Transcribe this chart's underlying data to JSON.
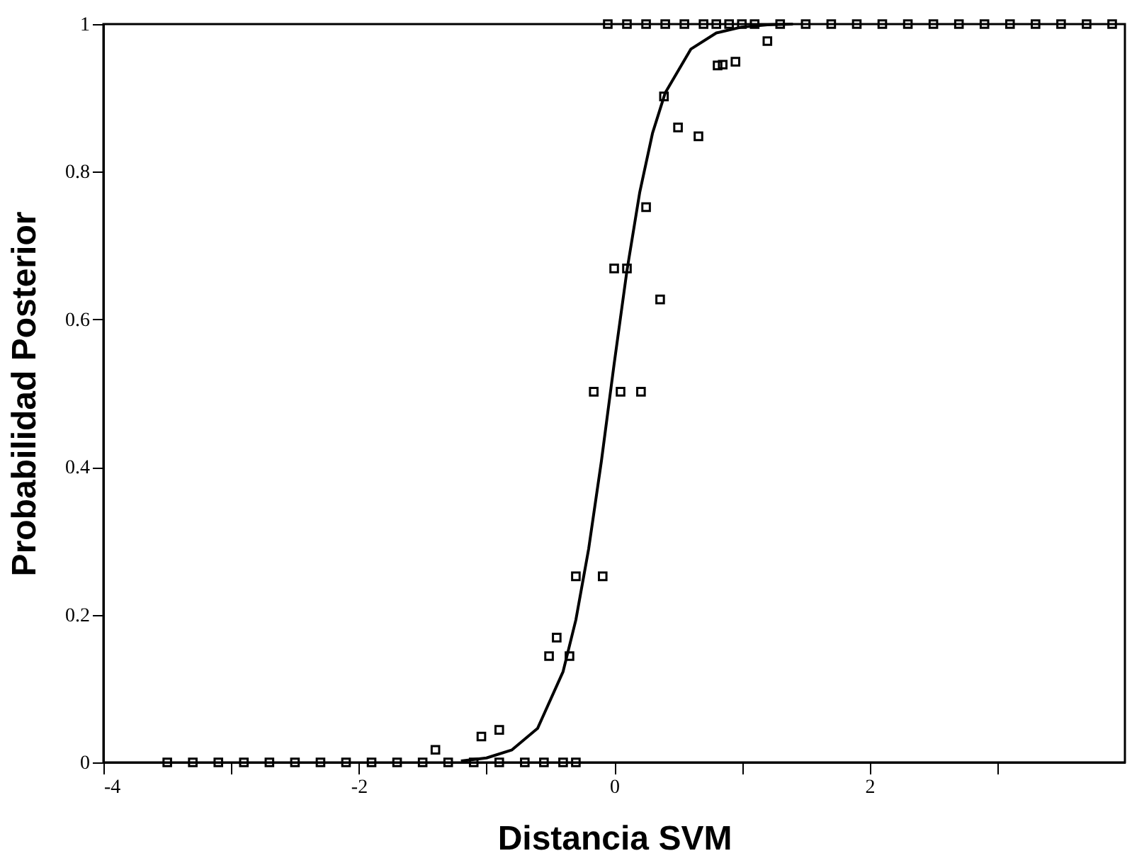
{
  "chart_data": {
    "type": "scatter",
    "xlabel": "Distancia SVM",
    "ylabel": "Probabilidad Posterior",
    "xlim": [
      -4,
      4
    ],
    "ylim": [
      0,
      1
    ],
    "xticks": [
      -4,
      {
        "value": -3,
        "label": null
      },
      -2,
      {
        "value": -1,
        "label": null
      },
      0,
      {
        "value": 1,
        "label": null
      },
      2,
      {
        "value": 3,
        "label": null
      }
    ],
    "yticks": [
      0,
      0.2,
      0.4,
      0.6,
      0.8,
      1
    ],
    "grid": false,
    "series": [
      {
        "marker": "square",
        "color": "#000000",
        "x": [
          -3.5,
          -3.3,
          -3.1,
          -2.9,
          -2.7,
          -2.5,
          -2.3,
          -2.1,
          -1.9,
          -1.7,
          -1.5,
          -1.3,
          -1.1,
          -0.9,
          -0.7,
          -0.55,
          -0.4,
          -0.3,
          -1.4,
          -1.04,
          -0.9,
          -0.51,
          -0.45,
          -0.35,
          -0.3,
          -0.09,
          -0.16,
          0.05,
          0.21,
          0.0,
          0.1,
          0.36,
          0.25,
          0.39,
          0.5,
          0.66,
          0.81,
          0.85,
          0.95,
          1.2,
          -0.05,
          0.1,
          0.25,
          0.4,
          0.55,
          0.7,
          0.8,
          0.9,
          1.0,
          1.1,
          1.3,
          1.5,
          1.7,
          1.9,
          2.1,
          2.3,
          2.5,
          2.7,
          2.9,
          3.1,
          3.3,
          3.5,
          3.7,
          3.9
        ],
        "values": [
          0,
          0,
          0,
          0,
          0,
          0,
          0,
          0,
          0,
          0,
          0,
          0,
          0,
          0,
          0,
          0,
          0,
          0,
          0.017,
          0.035,
          0.044,
          0.144,
          0.169,
          0.144,
          0.252,
          0.252,
          0.502,
          0.502,
          0.502,
          0.669,
          0.669,
          0.627,
          0.752,
          0.902,
          0.86,
          0.848,
          0.944,
          0.945,
          0.949,
          0.977,
          1,
          1,
          1,
          1,
          1,
          1,
          1,
          1,
          1,
          1,
          1,
          1,
          1,
          1,
          1,
          1,
          1,
          1,
          1,
          1,
          1,
          1,
          1,
          1
        ]
      },
      {
        "type": "line",
        "line_style": "solid",
        "color": "#000000",
        "x": [
          -1.2,
          -1.0,
          -0.8,
          -0.6,
          -0.4,
          -0.3,
          -0.2,
          -0.1,
          0,
          0.1,
          0.2,
          0.3,
          0.4,
          0.6,
          0.8,
          1.0,
          1.2,
          1.4
        ],
        "values": [
          0.002,
          0.006,
          0.017,
          0.046,
          0.123,
          0.193,
          0.289,
          0.408,
          0.54,
          0.666,
          0.772,
          0.852,
          0.907,
          0.966,
          0.988,
          0.996,
          0.999,
          1
        ]
      }
    ]
  }
}
